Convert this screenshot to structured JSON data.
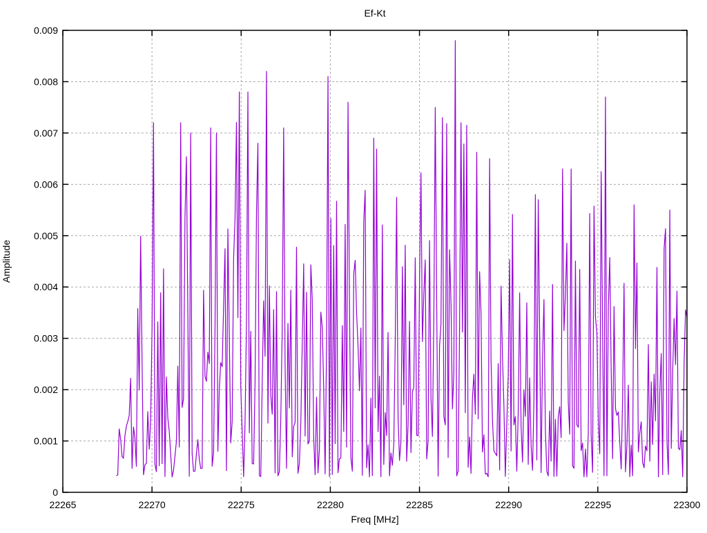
{
  "page": {
    "background": "#ffffff",
    "text_color": "#000000"
  },
  "chart_data": {
    "type": "line",
    "title": "Ef-Kt",
    "xlabel": "Freq [MHz]",
    "ylabel": "Amplitude",
    "xlim": [
      22265,
      22300
    ],
    "ylim": [
      0,
      0.009
    ],
    "x_ticks": [
      22265,
      22270,
      22275,
      22280,
      22285,
      22290,
      22295,
      22300
    ],
    "x_tick_labels": [
      "22265",
      "22270",
      "22275",
      "22280",
      "22285",
      "22290",
      "22295",
      "22300"
    ],
    "y_ticks": [
      0,
      0.001,
      0.002,
      0.003,
      0.004,
      0.005,
      0.006,
      0.007,
      0.008,
      0.009
    ],
    "y_tick_labels": [
      "0",
      "0.001",
      "0.002",
      "0.003",
      "0.004",
      "0.005",
      "0.006",
      "0.007",
      "0.008",
      "0.009"
    ],
    "grid": true,
    "grid_style": "dashed",
    "grid_color": "#a8a8a8",
    "axis_color": "#000000",
    "legend": "none",
    "series": [
      {
        "name": "Ef-Kt amplitude spectrum",
        "color": "#9400d3",
        "style": "dense noisy line (spectrum)",
        "x_start": 22268.0,
        "x_end": 22300.0,
        "n_points": 400,
        "noise_floor": 0.0003,
        "shape": 2.0,
        "seed": 1337,
        "envelope": [
          [
            22268.0,
            0.001
          ],
          [
            22268.4,
            0.0028
          ],
          [
            22268.8,
            0.0047
          ],
          [
            22269.5,
            0.006
          ],
          [
            22270.1,
            0.0072
          ],
          [
            22271.0,
            0.0062
          ],
          [
            22271.6,
            0.0072
          ],
          [
            22272.3,
            0.007
          ],
          [
            22273.3,
            0.0071
          ],
          [
            22274.0,
            0.0062
          ],
          [
            22274.8,
            0.0078
          ],
          [
            22275.5,
            0.0078
          ],
          [
            22276.4,
            0.0082
          ],
          [
            22277.0,
            0.0071
          ],
          [
            22278.0,
            0.0062
          ],
          [
            22278.8,
            0.0051
          ],
          [
            22279.9,
            0.0081
          ],
          [
            22280.6,
            0.0076
          ],
          [
            22281.5,
            0.0069
          ],
          [
            22282.5,
            0.0069
          ],
          [
            22283.5,
            0.0063
          ],
          [
            22284.5,
            0.0063
          ],
          [
            22285.5,
            0.0066
          ],
          [
            22286.2,
            0.0075
          ],
          [
            22287.0,
            0.0088
          ],
          [
            22287.8,
            0.0072
          ],
          [
            22288.8,
            0.0065
          ],
          [
            22289.8,
            0.0057
          ],
          [
            22290.8,
            0.0051
          ],
          [
            22291.8,
            0.0058
          ],
          [
            22292.8,
            0.0063
          ],
          [
            22293.8,
            0.0063
          ],
          [
            22294.6,
            0.0055
          ],
          [
            22295.4,
            0.0077
          ],
          [
            22296.2,
            0.0056
          ],
          [
            22297.2,
            0.0051
          ],
          [
            22298.2,
            0.0058
          ],
          [
            22299.2,
            0.0056
          ],
          [
            22300.0,
            0.0047
          ]
        ],
        "peaks": [
          [
            22270.1,
            0.0072
          ],
          [
            22271.6,
            0.0072
          ],
          [
            22272.2,
            0.007
          ],
          [
            22273.3,
            0.0071
          ],
          [
            22273.6,
            0.007
          ],
          [
            22274.9,
            0.0078
          ],
          [
            22275.4,
            0.0078
          ],
          [
            22276.4,
            0.0082
          ],
          [
            22277.4,
            0.0071
          ],
          [
            22279.9,
            0.0081
          ],
          [
            22281.0,
            0.0076
          ],
          [
            22282.4,
            0.0069
          ],
          [
            22285.9,
            0.0075
          ],
          [
            22286.3,
            0.0073
          ],
          [
            22287.0,
            0.0088
          ],
          [
            22287.3,
            0.0072
          ],
          [
            22288.9,
            0.0065
          ],
          [
            22291.5,
            0.0058
          ],
          [
            22293.0,
            0.0063
          ],
          [
            22293.5,
            0.0063
          ],
          [
            22295.4,
            0.0077
          ],
          [
            22297.0,
            0.0056
          ],
          [
            22299.0,
            0.0055
          ]
        ]
      }
    ]
  }
}
